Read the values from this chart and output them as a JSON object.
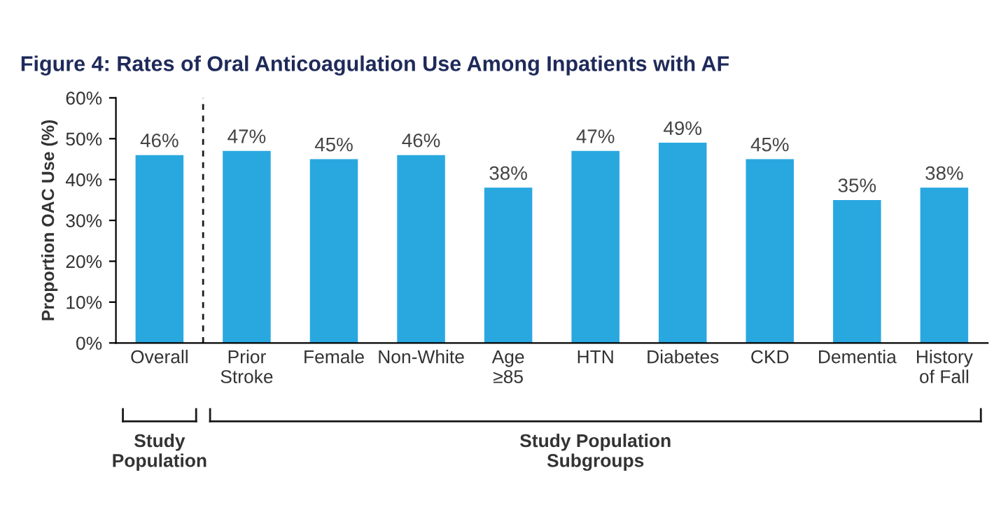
{
  "chart_data": {
    "type": "bar",
    "title": "Figure 4: Rates of Oral Anticoagulation Use Among Inpatients with AF",
    "ylabel": "Proportion OAC Use (%)",
    "categories": [
      "Overall",
      "Prior\nStroke",
      "Female",
      "Non-White",
      "Age\n≥85",
      "HTN",
      "Diabetes",
      "CKD",
      "Dementia",
      "History\nof Fall"
    ],
    "values": [
      46,
      47,
      45,
      46,
      38,
      47,
      49,
      45,
      35,
      38
    ],
    "value_labels": [
      "46%",
      "47%",
      "45%",
      "46%",
      "38%",
      "47%",
      "49%",
      "45%",
      "35%",
      "38%"
    ],
    "color": "#29a8e0",
    "ylim": [
      0,
      60
    ],
    "yticks": [
      {
        "value": 0,
        "label": "0%"
      },
      {
        "value": 10,
        "label": "10%"
      },
      {
        "value": 20,
        "label": "20%"
      },
      {
        "value": 30,
        "label": "30%"
      },
      {
        "value": 40,
        "label": "40%"
      },
      {
        "value": 50,
        "label": "50%"
      },
      {
        "value": 60,
        "label": "60%"
      }
    ],
    "annotations": [
      "Study\nPopulation",
      "Study Population\nSubgroups"
    ],
    "grid": false,
    "legend": false
  }
}
